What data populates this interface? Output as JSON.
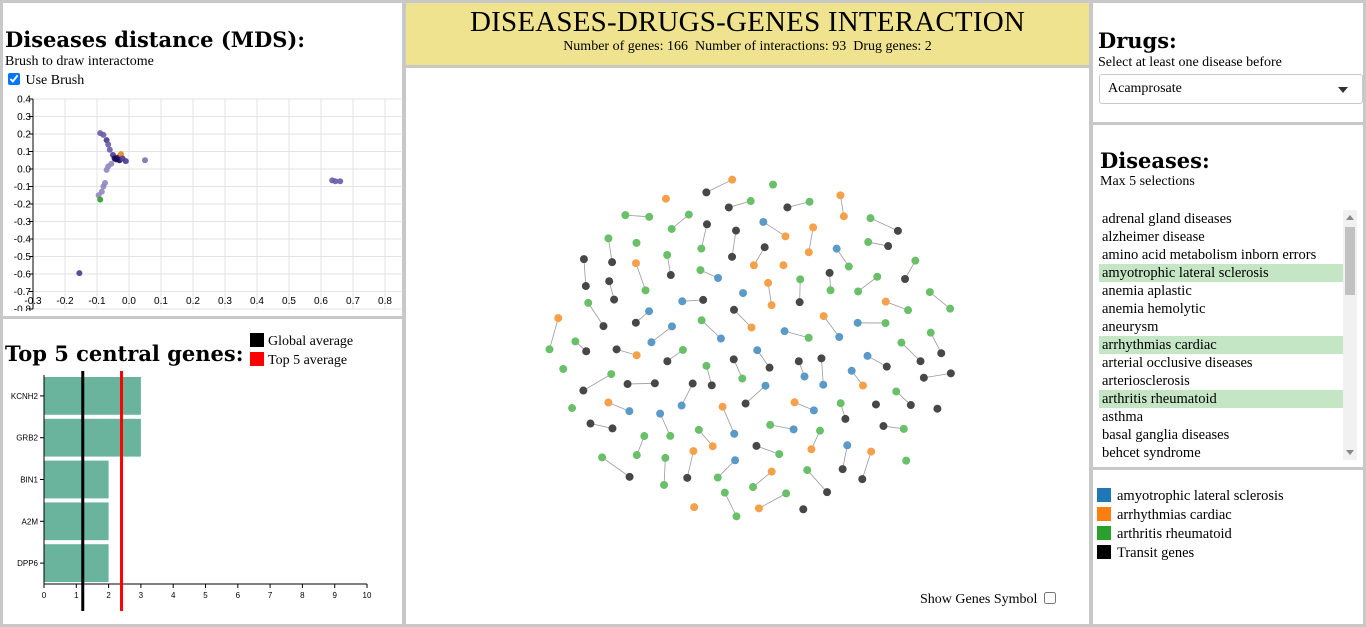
{
  "header": {
    "title": "DISEASES-DRUGS-GENES INTERACTION",
    "stats_label_genes": "Number of genes:",
    "stats_genes": "166",
    "stats_label_interactions": "Number of interactions:",
    "stats_interactions": "93",
    "stats_label_drug_genes": "Drug genes:",
    "stats_drug_genes": "2"
  },
  "mds": {
    "title": "Diseases distance (MDS):",
    "subtitle": "Brush to draw interactome",
    "use_brush_label": "Use Brush",
    "use_brush_checked": true
  },
  "genes": {
    "title": "Top 5 central genes:",
    "legend_global": "Global average",
    "legend_top5": "Top 5 average",
    "global_color": "#000000",
    "top5_color": "#ff0000",
    "bar_color": "#6ab39c"
  },
  "network": {
    "show_symbols_label": "Show Genes Symbol",
    "show_symbols_checked": false
  },
  "drugs": {
    "title": "Drugs:",
    "subtitle": "Select at least one disease before",
    "selected": "Acamprosate"
  },
  "diseases": {
    "title": "Diseases:",
    "subtitle": "Max 5 selections",
    "items": [
      {
        "label": "adrenal gland diseases",
        "selected": false
      },
      {
        "label": "alzheimer disease",
        "selected": false
      },
      {
        "label": "amino acid metabolism inborn errors",
        "selected": false
      },
      {
        "label": "amyotrophic lateral sclerosis",
        "selected": true
      },
      {
        "label": "anemia aplastic",
        "selected": false
      },
      {
        "label": "anemia hemolytic",
        "selected": false
      },
      {
        "label": "aneurysm",
        "selected": false
      },
      {
        "label": "arrhythmias cardiac",
        "selected": true
      },
      {
        "label": "arterial occlusive diseases",
        "selected": false
      },
      {
        "label": "arteriosclerosis",
        "selected": false
      },
      {
        "label": "arthritis rheumatoid",
        "selected": true
      },
      {
        "label": "asthma",
        "selected": false
      },
      {
        "label": "basal ganglia diseases",
        "selected": false
      },
      {
        "label": "behcet syndrome",
        "selected": false
      }
    ]
  },
  "legend": {
    "items": [
      {
        "label": "amyotrophic lateral sclerosis",
        "color": "#1f77b4"
      },
      {
        "label": "arrhythmias cardiac",
        "color": "#ff7f0e"
      },
      {
        "label": "arthritis rheumatoid",
        "color": "#2ca02c"
      },
      {
        "label": "Transit genes",
        "color": "#000000"
      }
    ]
  },
  "chart_data": [
    {
      "type": "scatter",
      "title": "Diseases distance (MDS):",
      "xlim": [
        -0.3,
        0.85
      ],
      "ylim": [
        -0.8,
        0.4
      ],
      "x_ticks": [
        -0.3,
        -0.2,
        -0.1,
        0.0,
        0.1,
        0.2,
        0.3,
        0.4,
        0.5,
        0.6,
        0.7,
        0.8
      ],
      "y_ticks": [
        0.4,
        0.3,
        0.2,
        0.1,
        0.0,
        -0.1,
        -0.2,
        -0.3,
        -0.4,
        -0.5,
        -0.6,
        -0.7,
        -0.8
      ],
      "x_tick_labels": [
        "-0.3",
        "-0.2",
        "-0.1",
        "0.0",
        "0.1",
        "0.2",
        "0.3",
        "0.4",
        "0.5",
        "0.6",
        "0.7",
        "0.8"
      ],
      "y_tick_labels": [
        "0.4",
        "0.3",
        "0.2",
        "0.1",
        "0.0",
        "-0.1",
        "-0.2",
        "-0.3",
        "-0.4",
        "-0.5",
        "-0.6",
        "-0.7",
        "-0.8"
      ],
      "grid": true,
      "points": [
        {
          "x": -0.09,
          "y": 0.205,
          "color": "#6a5aa8"
        },
        {
          "x": -0.08,
          "y": 0.195,
          "color": "#6a5aa8"
        },
        {
          "x": -0.07,
          "y": 0.165,
          "color": "#4b3a8e"
        },
        {
          "x": -0.065,
          "y": 0.14,
          "color": "#6a5aa8"
        },
        {
          "x": -0.06,
          "y": 0.11,
          "color": "#6a5aa8"
        },
        {
          "x": -0.05,
          "y": 0.08,
          "color": "#4b3a8e"
        },
        {
          "x": -0.045,
          "y": 0.06,
          "color": "#1a0a5e"
        },
        {
          "x": -0.04,
          "y": 0.055,
          "color": "#1a0a5e"
        },
        {
          "x": -0.035,
          "y": 0.065,
          "color": "#1a0a5e"
        },
        {
          "x": -0.03,
          "y": 0.05,
          "color": "#1a0a5e"
        },
        {
          "x": -0.025,
          "y": 0.085,
          "color": "#e08a1e"
        },
        {
          "x": -0.02,
          "y": 0.06,
          "color": "#4b3a8e"
        },
        {
          "x": -0.01,
          "y": 0.045,
          "color": "#4b3a8e"
        },
        {
          "x": 0.05,
          "y": 0.05,
          "color": "#7a70b0"
        },
        {
          "x": -0.055,
          "y": 0.03,
          "color": "#8f87c0"
        },
        {
          "x": -0.065,
          "y": 0.015,
          "color": "#8f87c0"
        },
        {
          "x": -0.07,
          "y": -0.005,
          "color": "#8f87c0"
        },
        {
          "x": -0.075,
          "y": -0.08,
          "color": "#8f87c0"
        },
        {
          "x": -0.08,
          "y": -0.1,
          "color": "#8f87c0"
        },
        {
          "x": -0.085,
          "y": -0.13,
          "color": "#8f87c0"
        },
        {
          "x": -0.095,
          "y": -0.15,
          "color": "#8f87c0"
        },
        {
          "x": -0.09,
          "y": -0.175,
          "color": "#2ca02c"
        },
        {
          "x": 0.635,
          "y": -0.065,
          "color": "#6a5aa8"
        },
        {
          "x": 0.645,
          "y": -0.07,
          "color": "#6a5aa8"
        },
        {
          "x": 0.66,
          "y": -0.07,
          "color": "#6a5aa8"
        },
        {
          "x": -0.155,
          "y": -0.595,
          "color": "#4b3a8e"
        }
      ]
    },
    {
      "type": "bar",
      "title": "Top 5 central genes:",
      "orientation": "horizontal",
      "categories": [
        "KCNH2",
        "GRB2",
        "BIN1",
        "A2M",
        "DPP6"
      ],
      "values": [
        3,
        3,
        2,
        2,
        2
      ],
      "xlim": [
        0,
        10
      ],
      "x_ticks": [
        0,
        1,
        2,
        3,
        4,
        5,
        6,
        7,
        8,
        9,
        10
      ],
      "global_average": 1.2,
      "top5_average": 2.4,
      "legend": [
        "Global average",
        "Top 5 average"
      ]
    }
  ]
}
